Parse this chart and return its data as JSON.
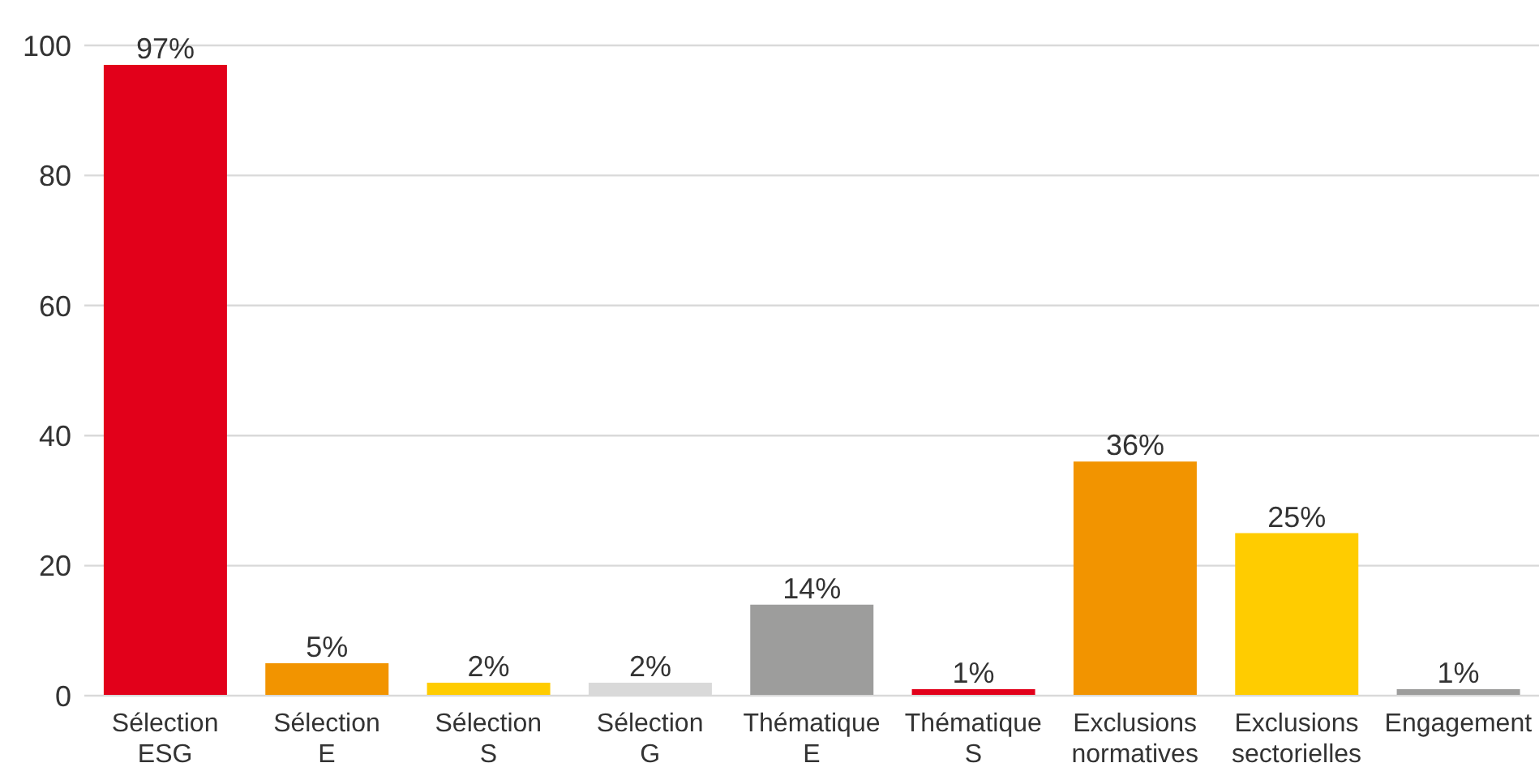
{
  "chart_data": {
    "type": "bar",
    "categories": [
      "Sélection ESG",
      "Sélection E",
      "Sélection S",
      "Sélection G",
      "Thématique E",
      "Thématique S",
      "Exclusions normatives",
      "Exclusions sectorielles",
      "Engagement"
    ],
    "values": [
      97,
      5,
      2,
      2,
      14,
      1,
      36,
      25,
      1
    ],
    "colors": [
      "#e2001a",
      "#f29400",
      "#ffcc00",
      "#d9d9d9",
      "#9d9d9c",
      "#e2001a",
      "#f29400",
      "#ffcc00",
      "#9d9d9c"
    ],
    "value_labels": [
      "97%",
      "5%",
      "2%",
      "2%",
      "14%",
      "1%",
      "36%",
      "25%",
      "1%"
    ],
    "ylim": [
      0,
      100
    ],
    "yticks": [
      0,
      20,
      40,
      60,
      80,
      100
    ],
    "grid": "y"
  }
}
